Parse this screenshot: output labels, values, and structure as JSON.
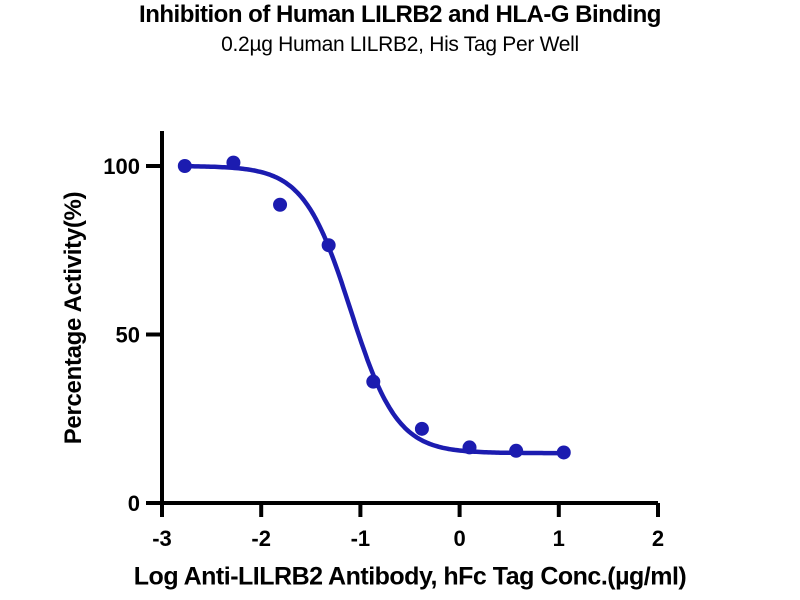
{
  "chart_data": {
    "type": "scatter",
    "title": "Inhibition of Human LILRB2 and HLA-G Binding",
    "subtitle": "0.2µg Human LILRB2, His Tag Per Well",
    "xlabel": "Log Anti-LILRB2 Antibody, hFc Tag Conc.(µg/ml)",
    "ylabel": "Percentage Activity(%)",
    "xlim": [
      -3,
      2
    ],
    "ylim": [
      0,
      110
    ],
    "x_ticks": [
      -3,
      -2,
      -1,
      0,
      1,
      2
    ],
    "x_tick_labels": [
      "-3",
      "-2",
      "-1",
      "0",
      "1",
      "2"
    ],
    "y_ticks": [
      0,
      50,
      100
    ],
    "y_tick_labels": [
      "0",
      "50",
      "100"
    ],
    "grid": false,
    "legend": false,
    "series": [
      {
        "name": "Anti-LILRB2 antibody, hFc Tag",
        "marker": "circle",
        "x": [
          -2.77,
          -2.28,
          -1.81,
          -1.32,
          -0.87,
          -0.38,
          0.1,
          0.57,
          1.05
        ],
        "y": [
          100,
          101,
          88.5,
          76.5,
          36,
          22,
          16.5,
          15.5,
          15
        ]
      }
    ],
    "fit_curve": {
      "model": "four_parameter_logistic_inhibition",
      "top": 100,
      "bottom": 14.8,
      "log_ic50": -1.1,
      "hill_slope": 1.85,
      "x_range": [
        -2.77,
        1.05
      ]
    }
  },
  "colors": {
    "series_blue": "#1c1cb0",
    "axis_black": "#000000",
    "background": "#ffffff"
  }
}
